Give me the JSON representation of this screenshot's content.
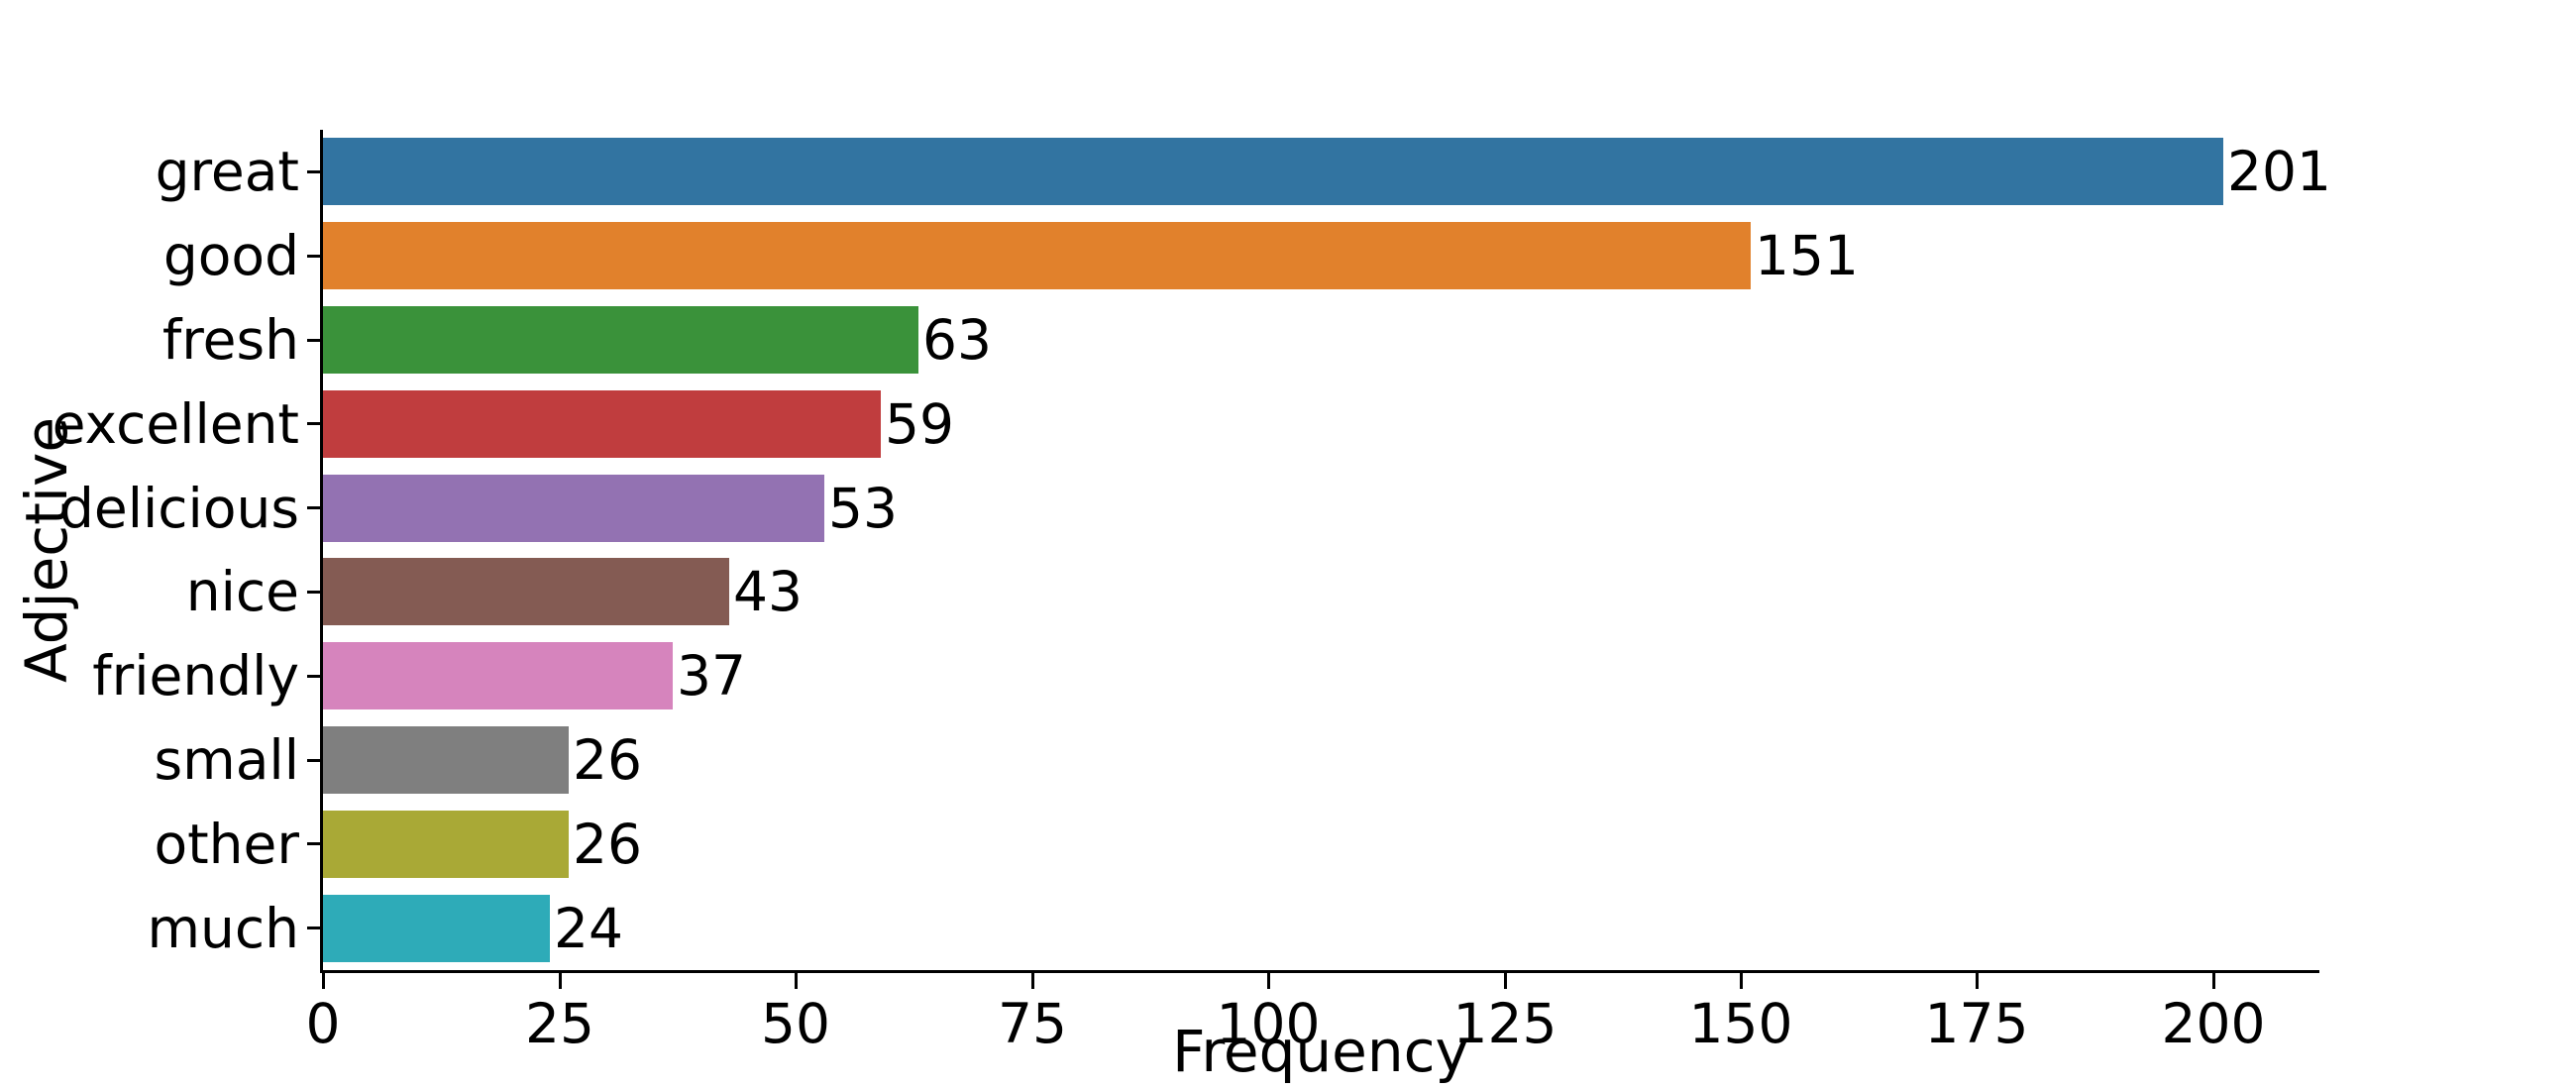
{
  "chart_data": {
    "type": "bar",
    "orientation": "horizontal",
    "title": "",
    "xlabel": "Frequency",
    "ylabel": "Adjective",
    "categories": [
      "great",
      "good",
      "fresh",
      "excellent",
      "delicious",
      "nice",
      "friendly",
      "small",
      "other",
      "much"
    ],
    "values": [
      201,
      151,
      63,
      59,
      53,
      43,
      37,
      26,
      26,
      24
    ],
    "value_labels": [
      "201",
      "151",
      "63",
      "59",
      "53",
      "43",
      "37",
      "26",
      "26",
      "24"
    ],
    "bar_colors": [
      "#3274A1",
      "#E1812C",
      "#3A923A",
      "#C03D3E",
      "#9372B2",
      "#845B53",
      "#D684BD",
      "#7F7F7F",
      "#A9A936",
      "#2EABB8"
    ],
    "xticks": [
      0,
      25,
      50,
      75,
      100,
      125,
      150,
      175,
      200
    ],
    "xtick_labels": [
      "0",
      "25",
      "50",
      "75",
      "100",
      "125",
      "150",
      "175",
      "200"
    ],
    "xlim": [
      0,
      211
    ],
    "grid": false,
    "legend": false,
    "axis_color": "#000000",
    "background_color": "#ffffff"
  }
}
